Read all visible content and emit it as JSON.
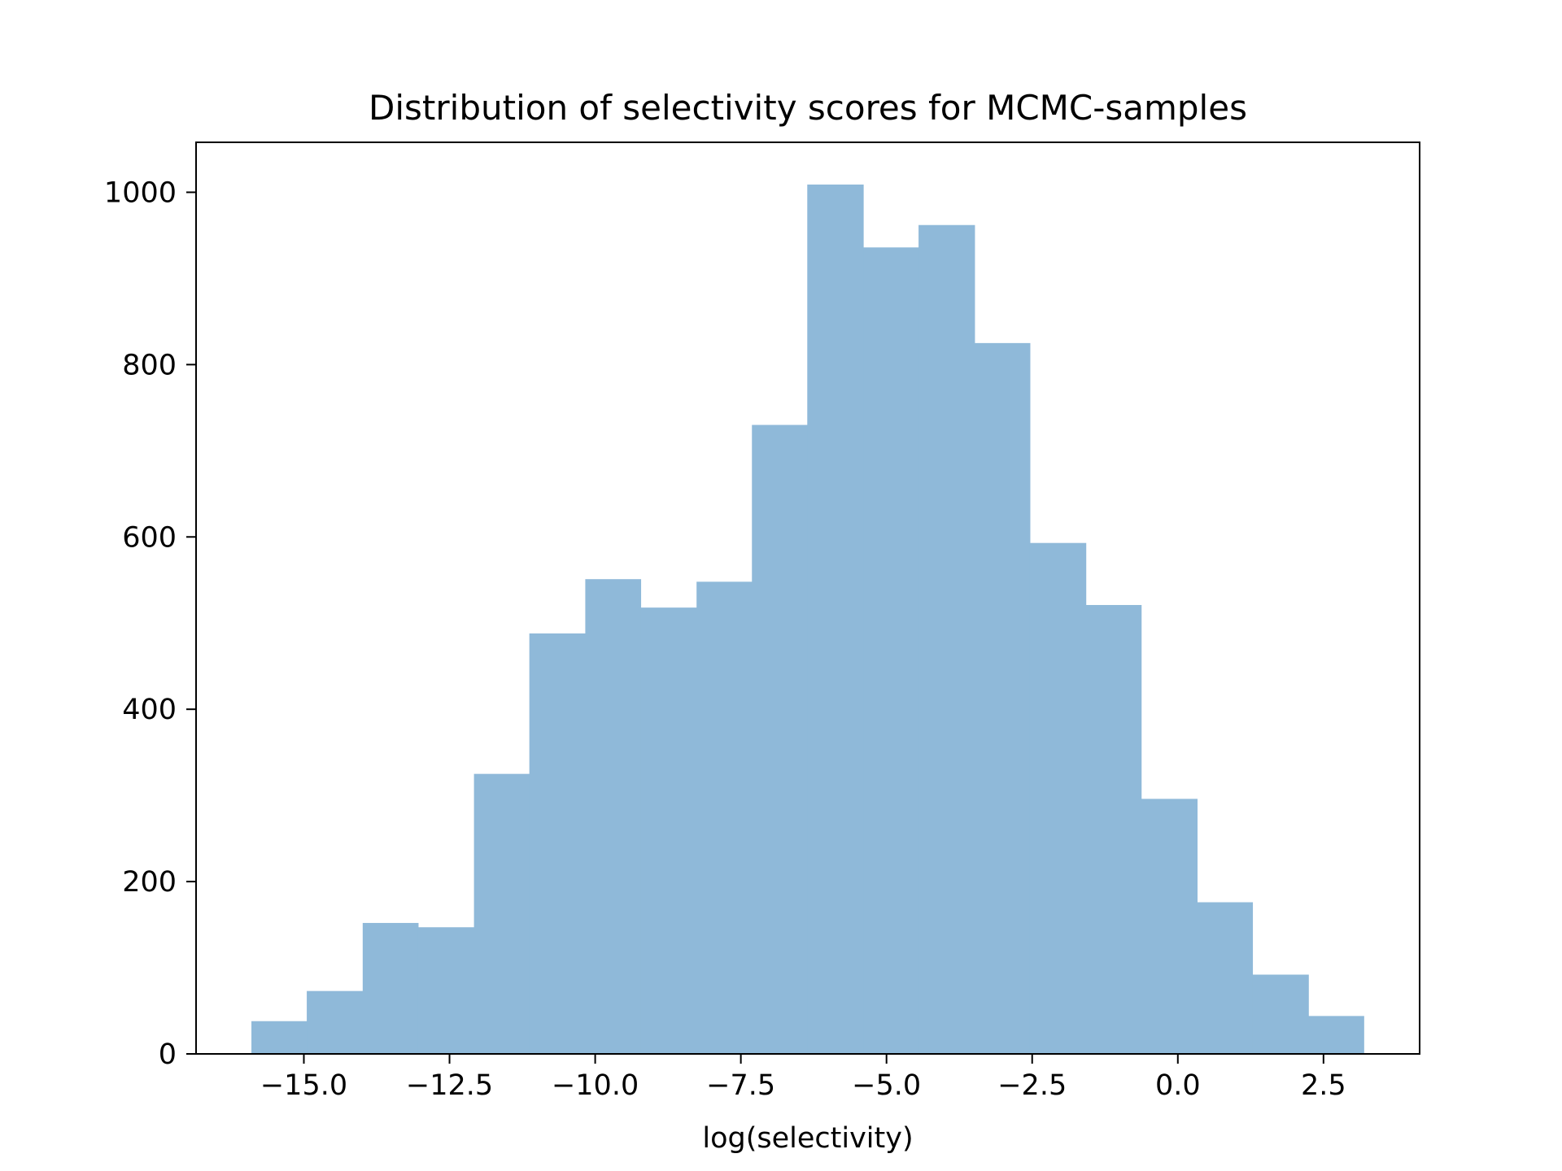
{
  "chart_data": {
    "type": "bar",
    "title": "Distribution of selectivity scores for MCMC-samples",
    "xlabel": "log(selectivity)",
    "ylabel": "",
    "xlim": [
      -16.85,
      4.15
    ],
    "ylim": [
      0,
      1058
    ],
    "grid": false,
    "color": "#8fb9d9",
    "bins": [
      {
        "x0": -15.9,
        "x1": -14.95,
        "count": 38
      },
      {
        "x0": -14.95,
        "x1": -13.99,
        "count": 73
      },
      {
        "x0": -13.99,
        "x1": -13.04,
        "count": 152
      },
      {
        "x0": -13.04,
        "x1": -12.08,
        "count": 147
      },
      {
        "x0": -12.08,
        "x1": -11.13,
        "count": 325
      },
      {
        "x0": -11.13,
        "x1": -10.17,
        "count": 488
      },
      {
        "x0": -10.17,
        "x1": -9.22,
        "count": 551
      },
      {
        "x0": -9.22,
        "x1": -8.26,
        "count": 518
      },
      {
        "x0": -8.26,
        "x1": -7.31,
        "count": 548
      },
      {
        "x0": -7.31,
        "x1": -6.36,
        "count": 730
      },
      {
        "x0": -6.36,
        "x1": -5.4,
        "count": 1009
      },
      {
        "x0": -5.4,
        "x1": -4.45,
        "count": 936
      },
      {
        "x0": -4.45,
        "x1": -3.49,
        "count": 962
      },
      {
        "x0": -3.49,
        "x1": -2.54,
        "count": 825
      },
      {
        "x0": -2.54,
        "x1": -1.58,
        "count": 593
      },
      {
        "x0": -1.58,
        "x1": -0.63,
        "count": 521
      },
      {
        "x0": -0.63,
        "x1": 0.33,
        "count": 296
      },
      {
        "x0": 0.33,
        "x1": 1.28,
        "count": 176
      },
      {
        "x0": 1.28,
        "x1": 2.24,
        "count": 92
      },
      {
        "x0": 2.24,
        "x1": 3.19,
        "count": 44
      }
    ],
    "xticks": [
      -15.0,
      -12.5,
      -10.0,
      -7.5,
      -5.0,
      -2.5,
      0.0,
      2.5
    ],
    "xtick_labels": [
      "−15.0",
      "−12.5",
      "−10.0",
      "−7.5",
      "−5.0",
      "−2.5",
      "0.0",
      "2.5"
    ],
    "yticks": [
      0,
      200,
      400,
      600,
      800,
      1000
    ],
    "ytick_labels": [
      "0",
      "200",
      "400",
      "600",
      "800",
      "1000"
    ]
  }
}
